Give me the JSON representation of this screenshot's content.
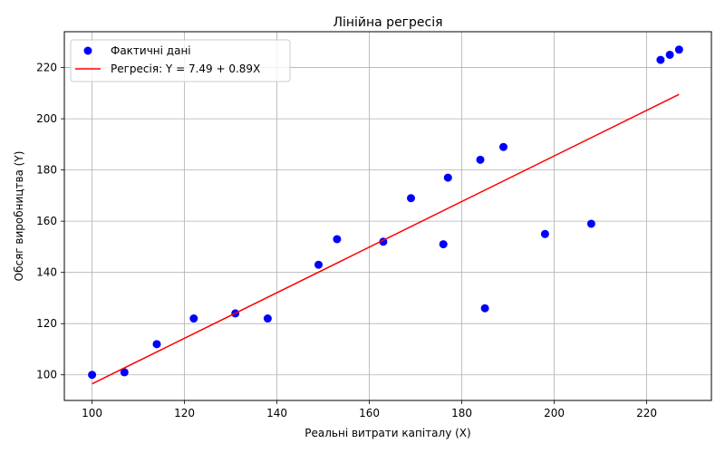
{
  "chart_data": {
    "type": "scatter",
    "title": "Лінійна регресія",
    "xlabel": "Реальні витрати капіталу (X)",
    "ylabel": "Обсяг виробництва (Y)",
    "xlim": [
      94,
      234
    ],
    "ylim": [
      90,
      234
    ],
    "xticks": [
      100,
      120,
      140,
      160,
      180,
      200,
      220
    ],
    "yticks": [
      100,
      120,
      140,
      160,
      180,
      200,
      220
    ],
    "grid": true,
    "legend_position": "top-left",
    "series": [
      {
        "name": "Фактичні дані",
        "kind": "scatter",
        "color": "#0000ff",
        "points": [
          {
            "x": 100,
            "y": 100
          },
          {
            "x": 107,
            "y": 101
          },
          {
            "x": 114,
            "y": 112
          },
          {
            "x": 122,
            "y": 122
          },
          {
            "x": 131,
            "y": 124
          },
          {
            "x": 138,
            "y": 122
          },
          {
            "x": 149,
            "y": 143
          },
          {
            "x": 153,
            "y": 153
          },
          {
            "x": 163,
            "y": 152
          },
          {
            "x": 169,
            "y": 169
          },
          {
            "x": 176,
            "y": 151
          },
          {
            "x": 177,
            "y": 177
          },
          {
            "x": 184,
            "y": 184
          },
          {
            "x": 185,
            "y": 126
          },
          {
            "x": 189,
            "y": 189
          },
          {
            "x": 198,
            "y": 155
          },
          {
            "x": 208,
            "y": 159
          },
          {
            "x": 223,
            "y": 223
          },
          {
            "x": 225,
            "y": 225
          },
          {
            "x": 227,
            "y": 227
          }
        ]
      },
      {
        "name": "Регресія: Y = 7.49 + 0.89X",
        "kind": "line",
        "color": "#ff0000",
        "intercept": 7.49,
        "slope": 0.89,
        "x_range": [
          100,
          227
        ]
      }
    ]
  }
}
